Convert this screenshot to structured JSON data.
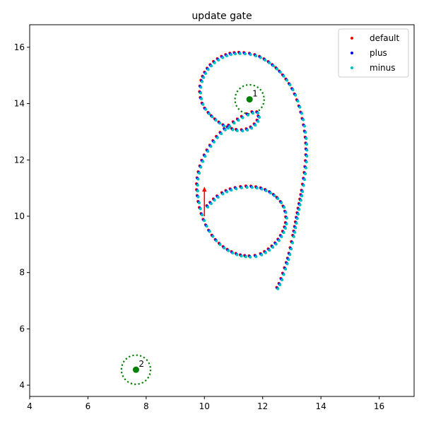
{
  "chart_data": {
    "type": "scatter",
    "title": "update gate",
    "xlabel": "",
    "ylabel": "",
    "xlim": [
      4,
      17.2
    ],
    "ylim": [
      3.6,
      16.8
    ],
    "xticks": [
      4,
      6,
      8,
      10,
      12,
      14,
      16
    ],
    "yticks": [
      4,
      6,
      8,
      10,
      12,
      14,
      16
    ],
    "grid": false,
    "legend_position": "top-right",
    "series": [
      {
        "name": "default",
        "color": "#ff0000"
      },
      {
        "name": "plus",
        "color": "#0000ff"
      },
      {
        "name": "minus",
        "color": "#00bfbf"
      }
    ],
    "trajectory_points": [
      [
        12.5,
        7.45
      ],
      [
        12.6,
        7.65
      ],
      [
        12.75,
        8.1
      ],
      [
        12.9,
        8.6
      ],
      [
        13.05,
        9.3
      ],
      [
        13.2,
        10.1
      ],
      [
        13.35,
        10.9
      ],
      [
        13.45,
        11.6
      ],
      [
        13.5,
        12.3
      ],
      [
        13.45,
        13.0
      ],
      [
        13.3,
        13.75
      ],
      [
        13.05,
        14.45
      ],
      [
        12.7,
        15.0
      ],
      [
        12.3,
        15.4
      ],
      [
        11.8,
        15.7
      ],
      [
        11.2,
        15.8
      ],
      [
        10.7,
        15.7
      ],
      [
        10.25,
        15.4
      ],
      [
        9.95,
        14.95
      ],
      [
        9.85,
        14.45
      ],
      [
        9.95,
        13.95
      ],
      [
        10.25,
        13.55
      ],
      [
        10.7,
        13.2
      ],
      [
        11.2,
        13.05
      ],
      [
        11.6,
        13.15
      ],
      [
        11.85,
        13.45
      ],
      [
        11.8,
        13.7
      ],
      [
        11.55,
        13.65
      ],
      [
        11.1,
        13.4
      ],
      [
        10.6,
        13.0
      ],
      [
        10.2,
        12.5
      ],
      [
        9.9,
        11.9
      ],
      [
        9.75,
        11.2
      ],
      [
        9.8,
        10.5
      ],
      [
        10.0,
        9.8
      ],
      [
        10.35,
        9.2
      ],
      [
        10.8,
        8.8
      ],
      [
        11.3,
        8.6
      ],
      [
        11.8,
        8.6
      ],
      [
        12.25,
        8.85
      ],
      [
        12.6,
        9.25
      ],
      [
        12.8,
        9.75
      ],
      [
        12.75,
        10.25
      ],
      [
        12.5,
        10.65
      ],
      [
        12.05,
        10.95
      ],
      [
        11.5,
        11.05
      ],
      [
        10.9,
        10.95
      ],
      [
        10.45,
        10.7
      ],
      [
        10.1,
        10.35
      ]
    ],
    "arrow": {
      "start": [
        10.0,
        10.0
      ],
      "end": [
        10.0,
        11.05
      ],
      "color": "#ff0000"
    },
    "gates": [
      {
        "label": "1",
        "center": [
          11.55,
          14.15
        ],
        "radius": 0.5,
        "color": "#008000"
      },
      {
        "label": "2",
        "center": [
          7.65,
          4.55
        ],
        "radius": 0.5,
        "color": "#008000"
      }
    ]
  }
}
